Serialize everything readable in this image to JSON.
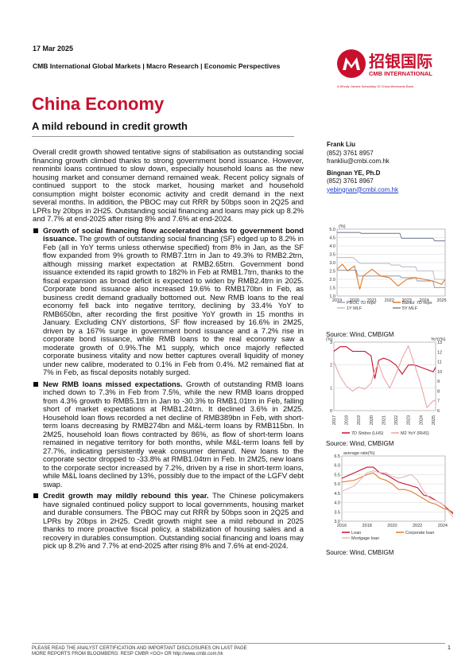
{
  "header": {
    "date": "17 Mar 2025",
    "series": "CMB International Global Markets | Macro Research | Economic Perspectives",
    "logo_cn": "招银国际",
    "logo_en": "CMB INTERNATIONAL",
    "logo_tag": "A Wholly Owned Subsidiary Of China Merchants Bank"
  },
  "title": "China Economy",
  "subtitle": "A mild rebound in credit growth",
  "intro": "Overall credit growth showed tentative signs of stabilisation as outstanding social financing growth climbed thanks to strong government bond issuance. However, renminbi loans continued to slow down, especially household loans as the new housing market and consumer demand remained weak. Recent policy signals of continued support to the stock market, housing market and household consumption might bolster economic activity and credit demand in the next several months. In addition, the PBOC may cut RRR by 50bps soon in 2Q25 and LPRs by 20bps in 2H25. Outstanding social financing and loans may pick up 8.2% and 7.7% at end-2025 after rising 8% and 7.6% at end-2024.",
  "bullets": [
    {
      "head": "Growth of social financing flow accelerated thanks to government bond issuance.",
      "text": " The growth of outstanding social financing (SF) edged up to 8.2% in Feb (all in YoY terms unless otherwise specified) from 8% in Jan, as the SF flow expanded from 9% growth to RMB7.1trn in Jan to 49.3% to RMB2.2trn, although missing market expectation at RMB2.65trn. Government bond issuance extended its rapid growth to 182% in Feb at RMB1.7trn, thanks to the fiscal expansion as broad deficit is expected to widen by RMB2.4trn in 2025. Corporate bond issuance also increased 19.6% to RMB170bn in Feb, as business credit demand gradually bottomed out. New RMB loans to the real economy fell back into negative territory, declining by 33.4% YoY to RMB650bn, after recording the first positive YoY growth in 15 months in January. Excluding CNY distortions, SF flow increased by 16.6% in 2M25, driven by a 167% surge in government bond issuance and a 7.2% rise in corporate bond issuance, while RMB loans to the real economy saw a moderate growth of 0.9%.The M1 supply, which once majorly reflected corporate business vitality and now better captures overall liquidity of money under new calibre, moderated to 0.1% in Feb from 0.4%. M2 remained flat at 7% in Feb, as fiscal deposits notably surged."
    },
    {
      "head": "New RMB loans missed expectations.",
      "text": " Growth of outstanding RMB loans inched down to 7.3% in Feb from 7.5%, while the new RMB loans dropped from 4.3% growth to RMB5.1trn in Jan to -30.3% to RMB1.01trn in Feb, falling short of market expectations at RMB1.24trn. It declined 3.6% in 2M25. Household loan flows recorded a net decline of RMB389bn in Feb, with short-term loans decreasing by RMB274bn and M&L-term loans by RMB115bn. In 2M25, household loan flows contracted by 86%, as flow of short-term loans remained in negative territory for both months, while M&L-term loans fell by 27.7%, indicating persistently weak consumer demand. New loans to the corporate sector dropped to -33.8% at RMB1.04trn in Feb. In 2M25, new loans to the corporate sector increased by 7.2%, driven by a rise in short-term loans, while M&L loans declined by 13%, possibly due to the impact of the LGFV debt swap."
    },
    {
      "head": "Credit growth may mildly rebound this year.",
      "text": " The Chinese policymakers have signaled continued policy support to local governments, housing market and durable consumers. The PBOC may cut RRR by 50bps soon in 2Q25 and LPRs by 20bps in 2H25. Credit growth might see a mild rebound in 2025 thanks to more proactive fiscal policy, a stabilization of housing sales and a recovery in durables consumption. Outstanding social financing and loans may pick up 8.2% and 7.7% at end-2025 after rising 8% and 7.6% at end-2024."
    }
  ],
  "authors": [
    {
      "name": "Frank Liu",
      "phone": "(852) 3761 8957",
      "email": "frankliu@cmbi.com.hk"
    },
    {
      "name": "Bingnan YE, Ph.D",
      "phone": "(852) 3761 8967",
      "email": "yebingnan@cmbi.com.hk"
    }
  ],
  "charts": {
    "c1": {
      "unit": "(%)",
      "source": "Source: Wind, CMBIGM",
      "legend": [
        "PBOC 7D repo",
        "Banks' 7D repo",
        "1Y MLF",
        "5Y MLF"
      ],
      "colors": [
        "#9aa3b5",
        "#e07a2a",
        "#b8bfcc",
        "#7c8494"
      ]
    },
    "c2": {
      "unit_left": "(%)",
      "unit_right": "YoY(%)",
      "source": "Source: Wind, CMBIGM",
      "legend": [
        "7D Shibor (LHS)",
        "M2 YoY (RHS)"
      ],
      "colors": [
        "#c8102e",
        "#e8a6a6"
      ]
    },
    "c3": {
      "unit": "average rate(%)",
      "source": "Source: Wind, CMBIGM",
      "legend": [
        "Loan",
        "Corporate loan",
        "Mortgage loan"
      ],
      "colors": [
        "#c8102e",
        "#e07a2a",
        "#e8b8b8"
      ]
    }
  },
  "chart_data": [
    {
      "type": "line",
      "title": "",
      "ylabel": "(%)",
      "ylim": [
        1.0,
        5.0
      ],
      "yticks": [
        "1.0",
        "1.5",
        "2.0",
        "2.5",
        "3.0",
        "3.5",
        "4.0",
        "4.5",
        "5.0"
      ],
      "xticks": [
        "2019",
        "2020",
        "2021",
        "2022",
        "2023",
        "2024",
        "2025"
      ],
      "series": [
        {
          "name": "PBOC 7D repo",
          "x": [
            2019,
            2020.1,
            2020.2,
            2022.6,
            2022.7,
            2023.5,
            2023.6,
            2024.5,
            2024.6,
            2025.2
          ],
          "values": [
            2.55,
            2.55,
            2.2,
            2.2,
            2.1,
            2.1,
            1.9,
            1.9,
            1.5,
            1.5
          ]
        },
        {
          "name": "Banks' 7D repo",
          "x": [
            2019,
            2019.3,
            2019.6,
            2020,
            2020.3,
            2020.5,
            2021,
            2021.5,
            2022,
            2022.5,
            2023,
            2023.5,
            2024,
            2024.5,
            2025,
            2025.2
          ],
          "values": [
            2.6,
            2.9,
            2.5,
            2.8,
            1.4,
            2.2,
            2.6,
            2.2,
            2.1,
            1.6,
            2.0,
            2.1,
            2.0,
            1.9,
            1.7,
            2.0
          ]
        },
        {
          "name": "1Y MLF",
          "x": [
            2019,
            2019.9,
            2020,
            2020.3,
            2022.0,
            2022.1,
            2022.6,
            2022.7,
            2023.5,
            2023.6,
            2024.5,
            2024.6,
            2025.2
          ],
          "values": [
            3.3,
            3.3,
            3.25,
            2.95,
            2.95,
            2.85,
            2.85,
            2.75,
            2.75,
            2.5,
            2.5,
            2.0,
            2.0
          ]
        },
        {
          "name": "5Y MLF",
          "x": [
            2019,
            2020.3,
            2020.4,
            2022.6,
            2022.7,
            2024.5,
            2024.6,
            2025.2
          ],
          "values": [
            4.8,
            4.8,
            4.75,
            4.75,
            4.45,
            4.45,
            4.3,
            4.3
          ]
        }
      ]
    },
    {
      "type": "line",
      "title": "",
      "ylabel": "(%)",
      "ylabel_right": "YoY(%)",
      "ylim": [
        0,
        3
      ],
      "ylim_right": [
        6,
        13
      ],
      "yticks": [
        "0",
        "1",
        "2",
        "3"
      ],
      "yticks_right": [
        "6",
        "7",
        "8",
        "9",
        "10",
        "11",
        "12",
        "13"
      ],
      "xticks": [
        "2017",
        "2018",
        "2019",
        "2020",
        "2021",
        "2022",
        "2023",
        "2024",
        "2025"
      ],
      "series": [
        {
          "name": "7D Shibor (LHS)",
          "axis": "left",
          "x": [
            2017,
            2017.5,
            2018,
            2018.5,
            2019,
            2019.5,
            2020,
            2020.3,
            2020.6,
            2021,
            2021.5,
            2022,
            2022.5,
            2023,
            2023.5,
            2024,
            2024.5,
            2025,
            2025.2
          ],
          "values": [
            2.6,
            2.8,
            2.8,
            2.6,
            2.6,
            2.6,
            2.4,
            1.4,
            2.2,
            2.3,
            2.2,
            2.0,
            1.6,
            2.0,
            2.0,
            1.9,
            1.8,
            1.7,
            1.9
          ]
        },
        {
          "name": "M2 YoY (RHS)",
          "axis": "right",
          "x": [
            2017,
            2017.5,
            2018,
            2018.5,
            2019,
            2019.5,
            2020,
            2020.3,
            2020.6,
            2021,
            2021.5,
            2022,
            2022.5,
            2023,
            2023.5,
            2024,
            2024.5,
            2025,
            2025.2
          ],
          "values": [
            11.0,
            9.5,
            8.5,
            8.0,
            8.4,
            8.2,
            8.8,
            10.1,
            10.8,
            9.4,
            8.3,
            9.7,
            11.4,
            12.6,
            10.7,
            8.7,
            6.3,
            7.0,
            7.0
          ]
        }
      ]
    },
    {
      "type": "line",
      "title": "",
      "ylabel": "average rate(%)",
      "ylim": [
        3.0,
        6.5
      ],
      "yticks": [
        "3.0",
        "3.5",
        "4.0",
        "4.5",
        "5.0",
        "5.5",
        "6.0",
        "6.5"
      ],
      "xticks": [
        "2016",
        "2018",
        "2020",
        "2022",
        "2024"
      ],
      "series": [
        {
          "name": "Loan",
          "x": [
            2016,
            2017,
            2018,
            2018.5,
            2019,
            2019.5,
            2020,
            2020.5,
            2021,
            2021.5,
            2022,
            2022.5,
            2023,
            2023.5,
            2024,
            2024.5,
            2025
          ],
          "values": [
            5.3,
            5.6,
            5.9,
            5.9,
            5.6,
            5.5,
            5.3,
            5.1,
            5.0,
            4.9,
            4.8,
            4.4,
            4.3,
            4.1,
            3.9,
            3.6,
            3.3
          ]
        },
        {
          "name": "Corporate loan",
          "x": [
            2016,
            2017,
            2018,
            2018.5,
            2019,
            2019.5,
            2020,
            2020.5,
            2021,
            2021.5,
            2022,
            2022.5,
            2023,
            2023.5,
            2024,
            2024.5,
            2025
          ],
          "values": [
            5.1,
            5.2,
            5.5,
            5.6,
            5.3,
            5.2,
            5.0,
            4.7,
            4.7,
            4.6,
            4.4,
            4.2,
            4.0,
            3.9,
            3.7,
            3.6,
            3.4
          ]
        },
        {
          "name": "Mortgage loan",
          "x": [
            2016,
            2017,
            2018,
            2018.5,
            2019,
            2019.5,
            2020,
            2020.5,
            2021,
            2021.5,
            2022,
            2022.5,
            2023,
            2023.5,
            2024,
            2024.5,
            2025
          ],
          "values": [
            4.6,
            4.9,
            5.6,
            5.7,
            5.6,
            5.6,
            5.4,
            5.3,
            5.4,
            5.5,
            5.2,
            4.6,
            4.2,
            4.1,
            3.9,
            3.5,
            3.1
          ]
        }
      ]
    }
  ],
  "footer": {
    "line1": "PLEASE READ THE ANALYST CERTIFICATION AND IMPORTANT DISCLOSURES ON LAST PAGE",
    "line2": "MORE REPORTS FROM BLOOMBERG: RESP CMBR <GO> OR http://www.cmbi.com.hk",
    "page": "1"
  }
}
